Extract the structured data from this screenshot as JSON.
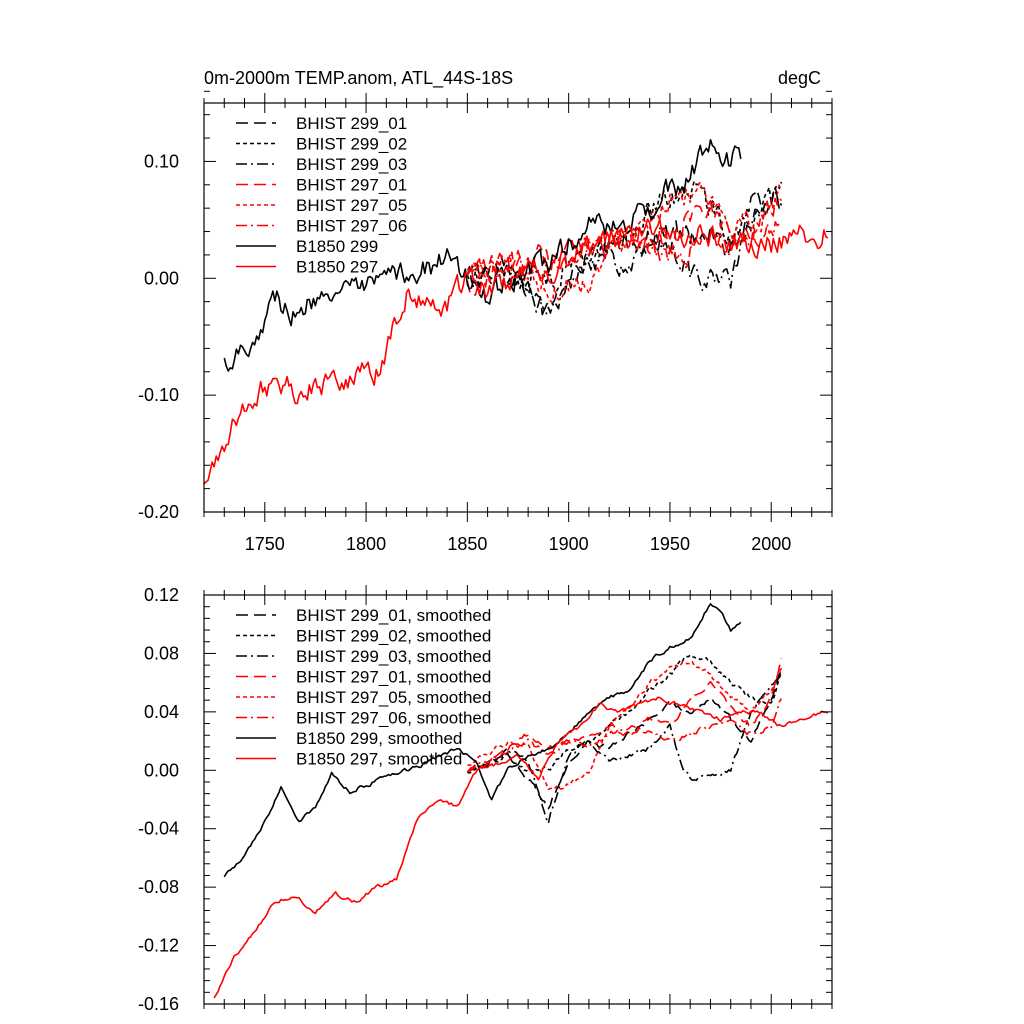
{
  "figure": {
    "title_left": "0m-2000m TEMP.anom, ATL_44S-18S",
    "title_right": "degC"
  },
  "colors": {
    "black": "#000000",
    "red": "#ff0000"
  },
  "chart_data": [
    {
      "type": "line",
      "xlim": [
        1720,
        2030
      ],
      "ylim": [
        -0.2,
        0.15
      ],
      "xticks": [
        1750,
        1800,
        1850,
        1900,
        1950,
        2000
      ],
      "xtick_labels": [
        "1750",
        "1800",
        "1850",
        "1900",
        "1950",
        "2000"
      ],
      "yticks": [
        -0.2,
        -0.1,
        0.0,
        0.1
      ],
      "ytick_labels": [
        "-0.20",
        "-0.10",
        "0.00",
        "0.10"
      ],
      "legend_position": "top-left",
      "series": [
        {
          "name": "BHIST 299_01",
          "color": "#000000",
          "dash": "long-dash",
          "noise": 0.011,
          "x": [
            1850,
            1870,
            1890,
            1910,
            1930,
            1950,
            1960,
            1970,
            1980,
            1990,
            2005
          ],
          "y": [
            0.0,
            0.005,
            -0.025,
            0.02,
            0.03,
            0.04,
            0.035,
            0.045,
            0.02,
            0.06,
            0.07
          ]
        },
        {
          "name": "BHIST 299_02",
          "color": "#000000",
          "dash": "short-dash",
          "noise": 0.011,
          "x": [
            1850,
            1870,
            1890,
            1910,
            1930,
            1950,
            1960,
            1970,
            1980,
            1990,
            2005
          ],
          "y": [
            0.0,
            0.005,
            0.0,
            0.02,
            0.04,
            0.07,
            0.08,
            0.06,
            0.04,
            0.05,
            0.07
          ]
        },
        {
          "name": "BHIST 299_03",
          "color": "#000000",
          "dash": "dash-dot",
          "noise": 0.011,
          "x": [
            1850,
            1870,
            1890,
            1910,
            1930,
            1950,
            1960,
            1970,
            1980,
            1990,
            2005
          ],
          "y": [
            0.0,
            0.01,
            -0.035,
            0.02,
            0.01,
            0.03,
            0.005,
            0.0,
            -0.005,
            0.05,
            0.065
          ]
        },
        {
          "name": "BHIST 297_01",
          "color": "#ff0000",
          "dash": "long-dash",
          "noise": 0.011,
          "x": [
            1850,
            1870,
            1890,
            1910,
            1930,
            1950,
            1960,
            1970,
            1980,
            1990,
            2005
          ],
          "y": [
            -0.005,
            0.01,
            0.02,
            0.025,
            0.03,
            0.035,
            0.055,
            0.06,
            0.04,
            0.04,
            0.075
          ]
        },
        {
          "name": "BHIST 297_05",
          "color": "#ff0000",
          "dash": "short-dash",
          "noise": 0.011,
          "x": [
            1850,
            1870,
            1890,
            1910,
            1930,
            1950,
            1960,
            1970,
            1980,
            1990,
            2005
          ],
          "y": [
            0.005,
            0.015,
            -0.01,
            0.0,
            0.04,
            0.07,
            0.075,
            0.06,
            0.045,
            0.045,
            0.07
          ]
        },
        {
          "name": "BHIST 297_06",
          "color": "#ff0000",
          "dash": "dash-dot",
          "noise": 0.011,
          "x": [
            1850,
            1870,
            1890,
            1910,
            1930,
            1950,
            1960,
            1970,
            1980,
            1990,
            2005
          ],
          "y": [
            0.0,
            0.015,
            0.01,
            0.03,
            0.035,
            0.02,
            0.025,
            0.035,
            0.03,
            0.035,
            0.05
          ]
        },
        {
          "name": "B1850 299",
          "color": "#000000",
          "dash": "solid",
          "noise": 0.011,
          "x": [
            1730,
            1745,
            1755,
            1767,
            1780,
            1790,
            1800,
            1820,
            1840,
            1860,
            1875,
            1890,
            1900,
            1910,
            1920,
            1930,
            1940,
            1950,
            1960,
            1970,
            1975,
            1985
          ],
          "y": [
            -0.072,
            -0.05,
            -0.015,
            -0.035,
            -0.005,
            -0.015,
            -0.01,
            0.005,
            0.015,
            -0.015,
            0.005,
            0.01,
            0.03,
            0.045,
            0.04,
            0.05,
            0.06,
            0.075,
            0.085,
            0.115,
            0.105,
            0.1
          ]
        },
        {
          "name": "B1850 297",
          "color": "#ff0000",
          "dash": "solid",
          "noise": 0.011,
          "x": [
            1720,
            1730,
            1737,
            1745,
            1757,
            1767,
            1785,
            1805,
            1810,
            1820,
            1830,
            1840,
            1850,
            1860,
            1870,
            1880,
            1890,
            1900,
            1920,
            1940,
            1960,
            1980,
            2000,
            2020,
            2028
          ],
          "y": [
            -0.18,
            -0.14,
            -0.12,
            -0.1,
            -0.085,
            -0.098,
            -0.085,
            -0.08,
            -0.06,
            -0.01,
            -0.025,
            -0.02,
            0.0,
            -0.01,
            -0.005,
            0.01,
            -0.005,
            0.02,
            0.03,
            0.045,
            0.04,
            0.03,
            0.03,
            0.04,
            0.038
          ]
        }
      ]
    },
    {
      "type": "line",
      "xlim": [
        1720,
        2030
      ],
      "ylim": [
        -0.16,
        0.12
      ],
      "xticks": [
        1750,
        1800,
        1850,
        1900,
        1950,
        2000
      ],
      "xtick_labels": [],
      "yticks": [
        -0.16,
        -0.12,
        -0.08,
        -0.04,
        0.0,
        0.04,
        0.08,
        0.12
      ],
      "ytick_labels": [
        "-0.16",
        "-0.12",
        "-0.08",
        "-0.04",
        "0.00",
        "0.04",
        "0.08",
        "0.12"
      ],
      "legend_position": "top-left",
      "series": [
        {
          "name": "BHIST 299_01, smoothed",
          "color": "#000000",
          "dash": "long-dash",
          "noise": 0.002,
          "x": [
            1850,
            1860,
            1870,
            1880,
            1890,
            1900,
            1910,
            1920,
            1930,
            1940,
            1950,
            1960,
            1970,
            1980,
            1990,
            2000,
            2005
          ],
          "y": [
            0.0,
            0.005,
            0.01,
            -0.005,
            -0.025,
            0.005,
            0.02,
            0.015,
            0.025,
            0.035,
            0.045,
            0.04,
            0.05,
            0.035,
            0.02,
            0.05,
            0.07
          ]
        },
        {
          "name": "BHIST 299_02, smoothed",
          "color": "#000000",
          "dash": "short-dash",
          "noise": 0.002,
          "x": [
            1850,
            1860,
            1870,
            1880,
            1890,
            1900,
            1910,
            1920,
            1930,
            1940,
            1950,
            1960,
            1970,
            1980,
            1990,
            2000,
            2005
          ],
          "y": [
            0.0,
            0.005,
            0.01,
            0.0,
            0.0,
            0.015,
            0.02,
            0.03,
            0.04,
            0.055,
            0.065,
            0.08,
            0.075,
            0.06,
            0.05,
            0.045,
            0.065
          ]
        },
        {
          "name": "BHIST 299_03, smoothed",
          "color": "#000000",
          "dash": "dash-dot",
          "noise": 0.002,
          "x": [
            1850,
            1860,
            1870,
            1880,
            1890,
            1900,
            1910,
            1920,
            1930,
            1940,
            1950,
            1955,
            1960,
            1970,
            1980,
            1990,
            2000,
            2005
          ],
          "y": [
            0.0,
            0.005,
            0.015,
            0.005,
            -0.035,
            0.01,
            0.02,
            0.005,
            0.01,
            0.015,
            0.03,
            0.005,
            -0.005,
            -0.005,
            0.0,
            0.04,
            0.06,
            0.065
          ]
        },
        {
          "name": "BHIST 297_01, smoothed",
          "color": "#ff0000",
          "dash": "long-dash",
          "noise": 0.002,
          "x": [
            1850,
            1860,
            1870,
            1880,
            1890,
            1900,
            1910,
            1920,
            1930,
            1940,
            1950,
            1960,
            1970,
            1980,
            1990,
            2000,
            2005
          ],
          "y": [
            0.0,
            0.005,
            0.015,
            0.025,
            0.015,
            0.02,
            0.025,
            0.03,
            0.025,
            0.035,
            0.03,
            0.05,
            0.06,
            0.045,
            0.03,
            0.05,
            0.075
          ]
        },
        {
          "name": "BHIST 297_05, smoothed",
          "color": "#ff0000",
          "dash": "short-dash",
          "noise": 0.002,
          "x": [
            1850,
            1860,
            1870,
            1880,
            1890,
            1900,
            1910,
            1920,
            1930,
            1940,
            1950,
            1960,
            1970,
            1980,
            1990,
            2000,
            2005
          ],
          "y": [
            0.005,
            0.01,
            0.02,
            0.015,
            -0.015,
            -0.01,
            0.0,
            0.03,
            0.045,
            0.06,
            0.07,
            0.075,
            0.065,
            0.05,
            0.04,
            0.055,
            0.07
          ]
        },
        {
          "name": "BHIST 297_06, smoothed",
          "color": "#ff0000",
          "dash": "dash-dot",
          "noise": 0.002,
          "x": [
            1850,
            1860,
            1870,
            1880,
            1890,
            1900,
            1910,
            1920,
            1930,
            1940,
            1950,
            1960,
            1970,
            1980,
            1990,
            2000,
            2005
          ],
          "y": [
            0.0,
            0.005,
            0.015,
            0.02,
            0.01,
            0.02,
            0.015,
            0.025,
            0.03,
            0.025,
            0.02,
            0.025,
            0.03,
            0.035,
            0.025,
            0.03,
            0.05
          ]
        },
        {
          "name": "B1850 299, smoothed",
          "color": "#000000",
          "dash": "solid",
          "noise": 0.0015,
          "x": [
            1730,
            1740,
            1750,
            1758,
            1767,
            1775,
            1783,
            1792,
            1800,
            1810,
            1820,
            1830,
            1845,
            1855,
            1862,
            1870,
            1880,
            1890,
            1900,
            1910,
            1920,
            1930,
            1940,
            1950,
            1960,
            1970,
            1975,
            1980,
            1985
          ],
          "y": [
            -0.072,
            -0.06,
            -0.035,
            -0.012,
            -0.035,
            -0.025,
            -0.002,
            -0.015,
            -0.01,
            -0.005,
            0.0,
            0.005,
            0.015,
            0.005,
            -0.02,
            0.0,
            0.01,
            0.015,
            0.025,
            0.04,
            0.05,
            0.055,
            0.075,
            0.085,
            0.09,
            0.115,
            0.11,
            0.095,
            0.1
          ]
        },
        {
          "name": "B1850 297, smoothed",
          "color": "#ff0000",
          "dash": "solid",
          "noise": 0.0015,
          "x": [
            1725,
            1735,
            1745,
            1755,
            1765,
            1775,
            1785,
            1795,
            1805,
            1815,
            1825,
            1835,
            1845,
            1855,
            1865,
            1875,
            1885,
            1895,
            1905,
            1915,
            1925,
            1935,
            1945,
            1955,
            1965,
            1975,
            1985,
            1995,
            2005,
            2015,
            2025,
            2028
          ],
          "y": [
            -0.155,
            -0.128,
            -0.11,
            -0.09,
            -0.085,
            -0.098,
            -0.085,
            -0.09,
            -0.08,
            -0.075,
            -0.035,
            -0.02,
            -0.025,
            0.0,
            0.005,
            0.01,
            -0.005,
            0.02,
            0.03,
            0.045,
            0.04,
            0.045,
            0.05,
            0.045,
            0.04,
            0.035,
            0.04,
            0.04,
            0.03,
            0.035,
            0.04,
            0.038
          ]
        }
      ]
    }
  ]
}
